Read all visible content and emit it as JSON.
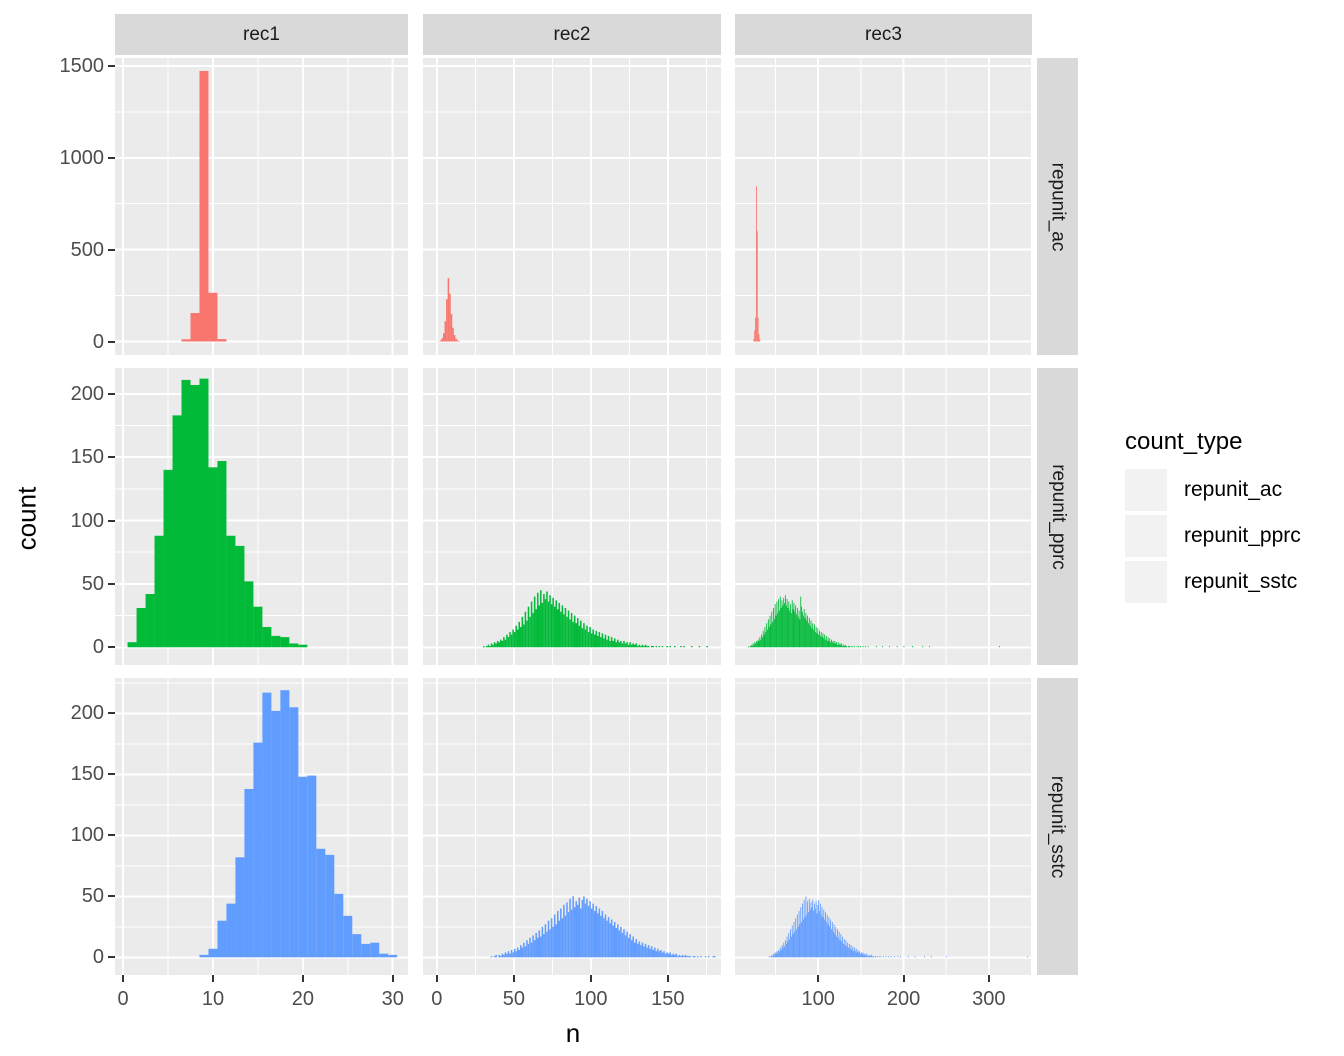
{
  "figure": {
    "x_axis_title": "n",
    "y_axis_title": "count"
  },
  "legend": {
    "title": "count_type",
    "items": [
      {
        "label": "repunit_ac",
        "color": "#F8766D"
      },
      {
        "label": "repunit_pprc",
        "color": "#00BA38"
      },
      {
        "label": "repunit_sstc",
        "color": "#619CFF"
      }
    ]
  },
  "theme": {
    "panel_background": "#EBEBEB",
    "strip_background": "#D9D9D9",
    "grid_color": "#FFFFFF",
    "tick_color": "#333333",
    "tick_label_color": "#4D4D4D"
  },
  "chart_data": {
    "type": "bar",
    "subtype": "faceted-histogram-grid",
    "xlabel": "n",
    "ylabel": "count",
    "facet_cols": [
      "rec1",
      "rec2",
      "rec3"
    ],
    "facet_rows": [
      "repunit_ac",
      "repunit_pprc",
      "repunit_sstc"
    ],
    "series_colors": {
      "repunit_ac": "#F8766D",
      "repunit_pprc": "#00BA38",
      "repunit_sstc": "#619CFF"
    },
    "col_scales": [
      {
        "min": -0.9,
        "max": 31.7,
        "ticks": [
          0,
          10,
          20,
          30
        ],
        "minor": [
          5,
          15,
          25
        ]
      },
      {
        "min": -9.0,
        "max": 184.5,
        "ticks": [
          0,
          50,
          100,
          150
        ],
        "minor": [
          25,
          75,
          125,
          175
        ]
      },
      {
        "min": 2.4,
        "max": 350.6,
        "ticks": [
          100,
          200,
          300
        ],
        "minor": [
          50,
          150,
          250,
          350
        ]
      }
    ],
    "row_scales": [
      {
        "min": -73.5,
        "max": 1543.5,
        "ticks": [
          0,
          500,
          1000,
          1500
        ],
        "minor": [
          250,
          750,
          1250
        ]
      },
      {
        "min": -14.0,
        "max": 220.4,
        "ticks": [
          0,
          50,
          100,
          150,
          200
        ],
        "minor": [
          25,
          75,
          125,
          175
        ]
      },
      {
        "min": -14.5,
        "max": 229.0,
        "ticks": [
          0,
          50,
          100,
          150,
          200
        ],
        "minor": [
          25,
          75,
          125,
          175,
          225
        ]
      }
    ],
    "panels": [
      {
        "row": 0,
        "col": 0,
        "series": "repunit_ac",
        "x0": 6.5,
        "bw": 1,
        "heights": [
          12,
          155,
          1473,
          265,
          13
        ],
        "dots": []
      },
      {
        "row": 0,
        "col": 1,
        "series": "repunit_ac",
        "x0": 1,
        "bw": 1,
        "heights": [
          2,
          6,
          18,
          45,
          110,
          230,
          345,
          260,
          150,
          75,
          35,
          15,
          6,
          2
        ],
        "dots": []
      },
      {
        "row": 0,
        "col": 2,
        "series": "repunit_ac",
        "x0": 24,
        "bw": 1,
        "heights": [
          15,
          60,
          130,
          845,
          600,
          130,
          40,
          10
        ],
        "dots": []
      },
      {
        "row": 1,
        "col": 0,
        "series": "repunit_pprc",
        "x0": 0.5,
        "bw": 1,
        "heights": [
          4,
          31,
          42,
          88,
          140,
          183,
          211,
          207,
          212,
          142,
          147,
          88,
          80,
          52,
          32,
          16,
          9,
          8,
          3,
          2
        ],
        "dots": []
      },
      {
        "row": 1,
        "col": 1,
        "series": "repunit_pprc",
        "x0": 30,
        "bw": 1,
        "heights": [
          1,
          0,
          1,
          2,
          1,
          3,
          2,
          4,
          3,
          5,
          4,
          6,
          5,
          8,
          6,
          10,
          8,
          12,
          10,
          14,
          12,
          17,
          14,
          20,
          16,
          24,
          18,
          28,
          21,
          32,
          24,
          36,
          27,
          40,
          30,
          43,
          33,
          45,
          35,
          42,
          38,
          44,
          36,
          41,
          34,
          39,
          32,
          37,
          30,
          35,
          28,
          33,
          26,
          31,
          24,
          29,
          22,
          27,
          20,
          25,
          19,
          23,
          17,
          21,
          15,
          19,
          14,
          17,
          12,
          16,
          11,
          14,
          10,
          13,
          9,
          12,
          8,
          11,
          7,
          10,
          6,
          9,
          5,
          8,
          5,
          7,
          4,
          6,
          4,
          5,
          3,
          5,
          3,
          4,
          2,
          4,
          2,
          3,
          2,
          3,
          1,
          2,
          1,
          2,
          1,
          2,
          1,
          1,
          0,
          1,
          1,
          0,
          1,
          0,
          1,
          0,
          1,
          0,
          0,
          1,
          0,
          1,
          0,
          0,
          1,
          0,
          0,
          0,
          1,
          0,
          1
        ],
        "dots": [
          165,
          170,
          175
        ]
      },
      {
        "row": 1,
        "col": 2,
        "series": "repunit_pprc",
        "x0": 18,
        "bw": 1,
        "heights": [
          1,
          0,
          1,
          2,
          1,
          3,
          2,
          4,
          3,
          5,
          4,
          6,
          5,
          8,
          6,
          10,
          8,
          13,
          10,
          16,
          12,
          19,
          14,
          22,
          16,
          25,
          18,
          28,
          20,
          31,
          22,
          34,
          25,
          36,
          27,
          38,
          29,
          40,
          31,
          37,
          33,
          39,
          35,
          41,
          33,
          38,
          31,
          36,
          29,
          34,
          27,
          37,
          30,
          35,
          28,
          33,
          26,
          31,
          24,
          29,
          22,
          40,
          32,
          28,
          25,
          30,
          23,
          27,
          21,
          25,
          19,
          23,
          17,
          21,
          15,
          19,
          14,
          18,
          12,
          16,
          11,
          15,
          10,
          13,
          9,
          12,
          8,
          11,
          7,
          10,
          6,
          9,
          5,
          8,
          5,
          7,
          4,
          6,
          4,
          5,
          3,
          5,
          3,
          4,
          2,
          4,
          2,
          3,
          2,
          3,
          1,
          2,
          1,
          2,
          1,
          1,
          0,
          1,
          1,
          0,
          1,
          0,
          1,
          0,
          1,
          0,
          0,
          1,
          0,
          1,
          0,
          1,
          0,
          0,
          1,
          0,
          0,
          1,
          0,
          0,
          1
        ],
        "dots": [
          168,
          175,
          183,
          192,
          200,
          210,
          222,
          230,
          312
        ]
      },
      {
        "row": 2,
        "col": 0,
        "series": "repunit_sstc",
        "x0": 8.5,
        "bw": 1,
        "heights": [
          2,
          7,
          30,
          44,
          82,
          138,
          176,
          217,
          202,
          219,
          205,
          148,
          149,
          89,
          84,
          52,
          34,
          19,
          11,
          12,
          3,
          2
        ],
        "dots": []
      },
      {
        "row": 2,
        "col": 1,
        "series": "repunit_sstc",
        "x0": 35,
        "bw": 1,
        "heights": [
          1,
          0,
          1,
          2,
          0,
          2,
          1,
          3,
          2,
          4,
          3,
          5,
          3,
          6,
          4,
          7,
          5,
          8,
          6,
          10,
          8,
          12,
          9,
          14,
          11,
          16,
          12,
          18,
          14,
          20,
          16,
          22,
          17,
          25,
          19,
          27,
          21,
          30,
          23,
          32,
          25,
          35,
          27,
          38,
          30,
          40,
          32,
          43,
          34,
          45,
          37,
          48,
          39,
          50,
          41,
          46,
          43,
          49,
          40,
          47,
          50,
          44,
          48,
          42,
          46,
          40,
          44,
          38,
          42,
          36,
          40,
          34,
          38,
          32,
          35,
          30,
          33,
          28,
          31,
          26,
          29,
          24,
          27,
          22,
          25,
          20,
          23,
          18,
          21,
          16,
          19,
          14,
          17,
          12,
          15,
          11,
          13,
          10,
          12,
          9,
          11,
          8,
          10,
          7,
          9,
          6,
          8,
          5,
          7,
          5,
          6,
          4,
          5,
          3,
          4,
          3,
          4,
          2,
          3,
          2,
          3,
          1,
          2,
          1,
          2,
          1,
          2,
          1,
          1,
          1,
          0,
          1,
          1,
          0,
          1,
          0,
          1,
          0,
          0,
          1,
          0,
          1,
          0,
          0,
          1,
          1
        ],
        "dots": []
      },
      {
        "row": 2,
        "col": 2,
        "series": "repunit_sstc",
        "x0": 42,
        "bw": 1,
        "heights": [
          1,
          0,
          1,
          2,
          1,
          3,
          2,
          4,
          3,
          5,
          4,
          6,
          5,
          8,
          6,
          10,
          8,
          12,
          9,
          14,
          11,
          17,
          13,
          20,
          15,
          23,
          17,
          26,
          19,
          29,
          21,
          32,
          23,
          35,
          25,
          38,
          27,
          41,
          29,
          44,
          31,
          47,
          33,
          50,
          35,
          46,
          37,
          48,
          39,
          45,
          41,
          47,
          38,
          44,
          40,
          46,
          36,
          43,
          47,
          38,
          44,
          35,
          41,
          33,
          39,
          31,
          37,
          29,
          35,
          27,
          33,
          25,
          31,
          23,
          29,
          21,
          27,
          19,
          25,
          17,
          23,
          16,
          21,
          14,
          19,
          13,
          17,
          11,
          15,
          10,
          14,
          9,
          12,
          8,
          11,
          7,
          10,
          6,
          9,
          5,
          8,
          5,
          7,
          4,
          6,
          4,
          5,
          3,
          4,
          3,
          4,
          2,
          3,
          2,
          3,
          1,
          2,
          1,
          2,
          1,
          2,
          1,
          1,
          0,
          1,
          1,
          0,
          1,
          0,
          1,
          0,
          1,
          0,
          0,
          1,
          0,
          0,
          1,
          0,
          0,
          1,
          0,
          0,
          1,
          0,
          0,
          0,
          1,
          0,
          0,
          0,
          1,
          0,
          0,
          1
        ],
        "dots": [
          205,
          213,
          224,
          232,
          250,
          345
        ]
      }
    ]
  }
}
